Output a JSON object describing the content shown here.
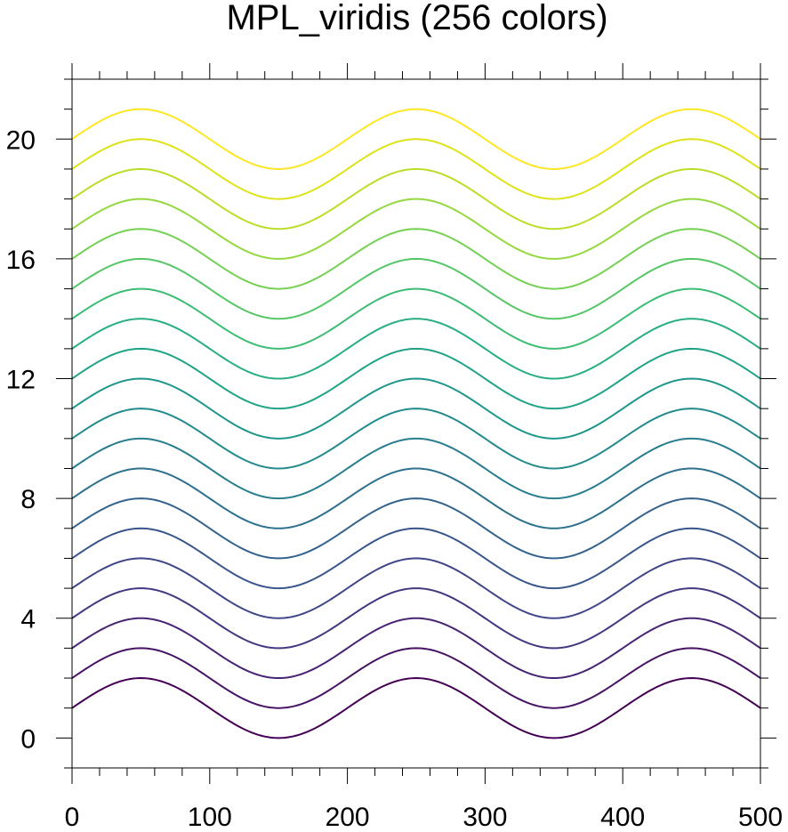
{
  "chart_data": {
    "type": "line",
    "title": "MPL_viridis (256 colors)",
    "xlabel": "",
    "ylabel": "",
    "xlim": [
      0,
      500
    ],
    "ylim": [
      -1,
      22
    ],
    "x_ticks": [
      0,
      100,
      200,
      300,
      400,
      500
    ],
    "y_ticks": [
      0,
      4,
      8,
      12,
      16,
      20
    ],
    "x_minor_step": 20,
    "y_minor_step": 1,
    "grid": false,
    "legend": "none",
    "function": "y = offset + sin(pi * x / 100)",
    "x": [
      0,
      10,
      20,
      30,
      40,
      50,
      60,
      70,
      80,
      90,
      100,
      110,
      120,
      130,
      140,
      150,
      160,
      170,
      180,
      190,
      200,
      210,
      220,
      230,
      240,
      250,
      260,
      270,
      280,
      290,
      300,
      310,
      320,
      330,
      340,
      350,
      360,
      370,
      380,
      390,
      400,
      410,
      420,
      430,
      440,
      450,
      460,
      470,
      480,
      490,
      500
    ],
    "series": [
      {
        "offset": 1,
        "color": "#440154"
      },
      {
        "offset": 2,
        "color": "#471365"
      },
      {
        "offset": 3,
        "color": "#482475"
      },
      {
        "offset": 4,
        "color": "#453781"
      },
      {
        "offset": 5,
        "color": "#404688"
      },
      {
        "offset": 6,
        "color": "#39568c"
      },
      {
        "offset": 7,
        "color": "#33638d"
      },
      {
        "offset": 8,
        "color": "#2d718e"
      },
      {
        "offset": 9,
        "color": "#287d8e"
      },
      {
        "offset": 10,
        "color": "#238a8d"
      },
      {
        "offset": 11,
        "color": "#1f968b"
      },
      {
        "offset": 12,
        "color": "#20a386"
      },
      {
        "offset": 13,
        "color": "#29af7f"
      },
      {
        "offset": 14,
        "color": "#3dbc74"
      },
      {
        "offset": 15,
        "color": "#56c667"
      },
      {
        "offset": 16,
        "color": "#75d054"
      },
      {
        "offset": 17,
        "color": "#95d840"
      },
      {
        "offset": 18,
        "color": "#bade28"
      },
      {
        "offset": 19,
        "color": "#dde318"
      },
      {
        "offset": 20,
        "color": "#fde725"
      }
    ]
  }
}
